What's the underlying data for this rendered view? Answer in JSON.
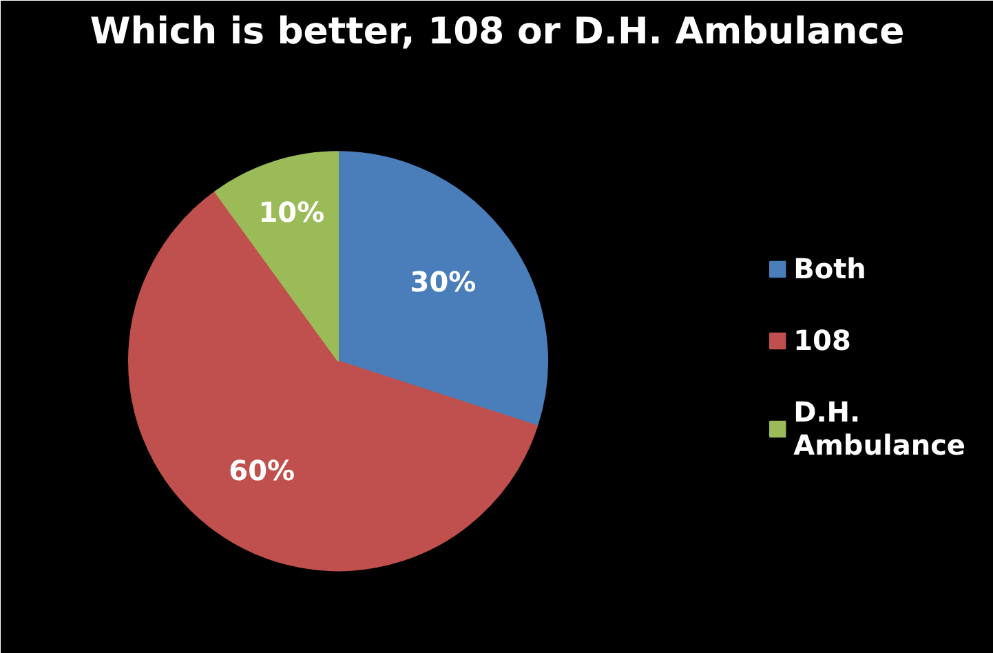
{
  "chart_data": {
    "type": "pie",
    "title": "Which is better, 108 or D.H. Ambulance",
    "categories": [
      "Both",
      "108",
      "D.H. Ambulance"
    ],
    "values": [
      30,
      60,
      10
    ],
    "colors": [
      "#4a7ebb",
      "#c0504d",
      "#9bbb59"
    ],
    "value_labels": [
      "30%",
      "60%",
      "10%"
    ],
    "legend": "right"
  }
}
